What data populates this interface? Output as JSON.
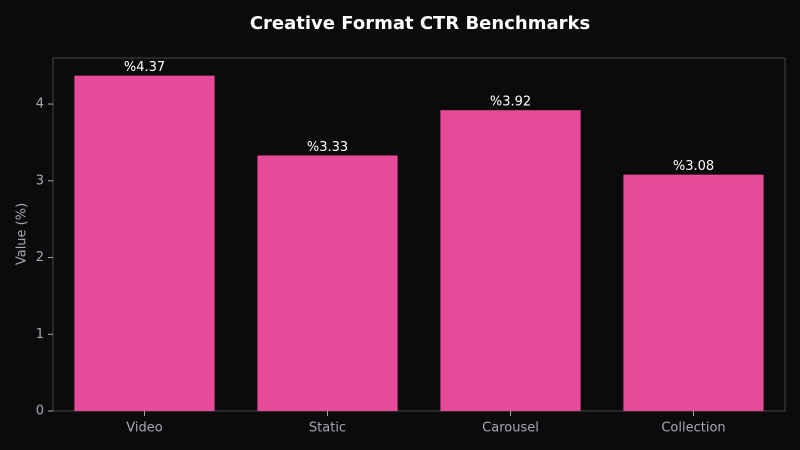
{
  "chart_data": {
    "type": "bar",
    "title": "Creative Format CTR Benchmarks",
    "ylabel": "Value (%)",
    "categories": [
      "Video",
      "Static",
      "Carousel",
      "Collection"
    ],
    "values": [
      4.37,
      3.33,
      3.92,
      3.08
    ],
    "value_labels": [
      "%4.37",
      "%3.33",
      "%3.92",
      "%3.08"
    ],
    "color": "#e84a9a",
    "ylim": [
      0,
      4.6
    ],
    "yticks": [
      0,
      1,
      2,
      3,
      4
    ],
    "grid": false
  }
}
